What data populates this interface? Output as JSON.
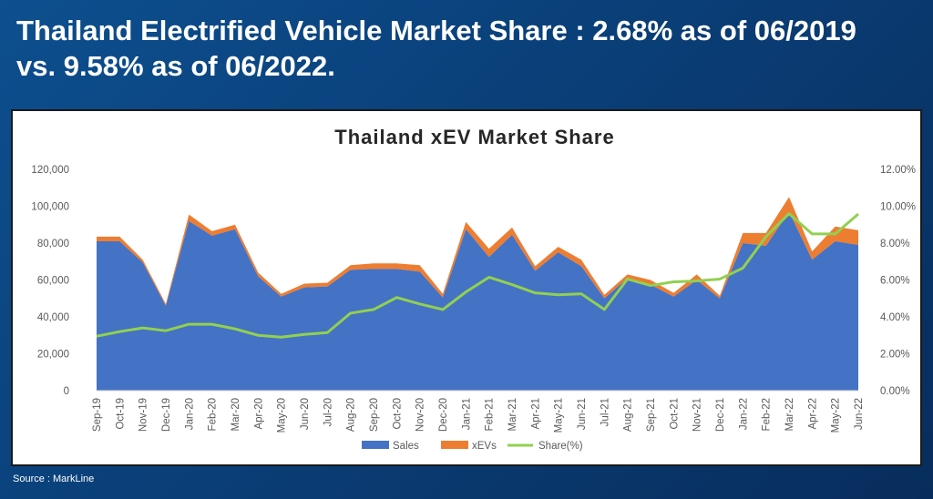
{
  "slide": {
    "title_line1": "Thailand Electrified Vehicle Market Share : 2.68% as of 06/2019",
    "title_line2": "vs. 9.58% as of 06/2022.",
    "source": "Source : MarkLine"
  },
  "colors": {
    "sales": "#4472C4",
    "xevs": "#ED7D31",
    "share": "#92D050"
  },
  "chart_data": {
    "type": "area",
    "title": "Thailand xEV Market Share",
    "xlabel": "",
    "ylabel": "",
    "categories": [
      "Sep-19",
      "Oct-19",
      "Nov-19",
      "Dec-19",
      "Jan-20",
      "Feb-20",
      "Mar-20",
      "Apr-20",
      "May-20",
      "Jun-20",
      "Jul-20",
      "Aug-20",
      "Sep-20",
      "Oct-20",
      "Nov-20",
      "Dec-20",
      "Jan-21",
      "Feb-21",
      "Mar-21",
      "Apr-21",
      "May-21",
      "Jun-21",
      "Jul-21",
      "Aug-21",
      "Sep-21",
      "Oct-21",
      "Nov-21",
      "Dec-21",
      "Jan-22",
      "Feb-22",
      "Mar-22",
      "Apr-22",
      "May-22",
      "Jun-22"
    ],
    "ylim": [
      0,
      120000
    ],
    "y_ticks": [
      "0",
      "20,000",
      "40,000",
      "60,000",
      "80,000",
      "100,000",
      "120,000"
    ],
    "y2lim": [
      0,
      12
    ],
    "y2_ticks": [
      "0.00%",
      "2.00%",
      "4.00%",
      "6.00%",
      "8.00%",
      "10.00%",
      "12.00%"
    ],
    "legend_position": "bottom",
    "grid": false,
    "series": [
      {
        "name": "Sales",
        "kind": "area",
        "axis": "left",
        "values": [
          81000,
          81000,
          69500,
          46000,
          92000,
          84000,
          87500,
          62000,
          51000,
          56000,
          56500,
          65500,
          66000,
          66000,
          64500,
          50500,
          87500,
          72500,
          84500,
          65000,
          75000,
          67500,
          50000,
          61000,
          57500,
          51000,
          60000,
          50000,
          80000,
          78500,
          97000,
          71000,
          81000,
          79000
        ]
      },
      {
        "name": "xEVs",
        "kind": "stacked-area",
        "axis": "left",
        "values": [
          2500,
          2500,
          1500,
          1000,
          3500,
          2500,
          2500,
          2000,
          1500,
          2000,
          2000,
          2500,
          3000,
          3000,
          3500,
          2000,
          4000,
          4500,
          4000,
          2500,
          3000,
          3500,
          2000,
          2000,
          2500,
          2000,
          3000,
          1500,
          5500,
          7000,
          8000,
          4500,
          8000,
          8000
        ]
      },
      {
        "name": "Share(%)",
        "kind": "line",
        "axis": "right",
        "values": [
          2.95,
          3.2,
          3.4,
          3.25,
          3.6,
          3.6,
          3.35,
          3.0,
          2.9,
          3.05,
          3.15,
          4.2,
          4.4,
          5.05,
          4.7,
          4.4,
          5.35,
          6.15,
          5.75,
          5.3,
          5.2,
          5.25,
          4.4,
          6.05,
          5.7,
          5.9,
          5.95,
          6.05,
          6.65,
          8.35,
          9.6,
          8.5,
          8.5,
          9.58
        ]
      }
    ]
  }
}
